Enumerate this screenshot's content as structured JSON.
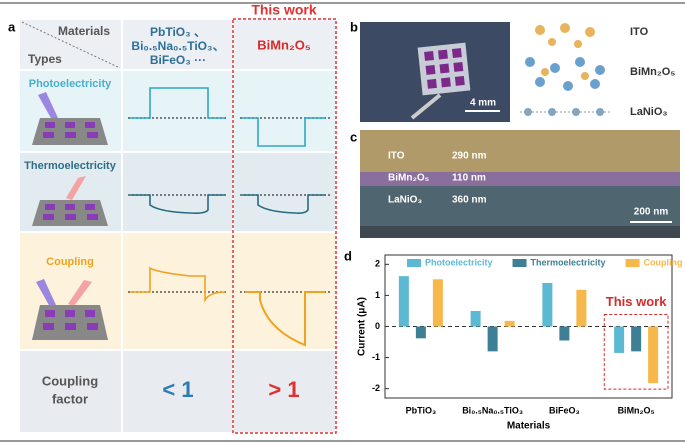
{
  "panel_labels": [
    "a",
    "b",
    "c",
    "d"
  ],
  "panel_a": {
    "header_materials": "Materials",
    "header_types": "Types",
    "this_work": "This work",
    "col1_lines": [
      "PbTiO₃ 、",
      "Bi₀.₅Na₀.₅TiO₃、",
      "BiFeO₃ ···"
    ],
    "col2": "BiMn₂O₅",
    "rows": [
      "Photoelectricity",
      "Thermoelectricity",
      "Coupling"
    ],
    "factor_label": [
      "Coupling",
      "factor"
    ],
    "factor_values": [
      "< 1",
      "> 1"
    ]
  },
  "panel_b": {
    "scale": "4 mm",
    "layers": [
      "ITO",
      "BiMn₂O₅",
      "LaNiO₃"
    ]
  },
  "panel_c": {
    "layers": [
      [
        "ITO",
        "290 nm"
      ],
      [
        "BiMn₂O₅",
        "110 nm"
      ],
      [
        "LaNiO₃",
        "360 nm"
      ]
    ],
    "scale": "200 nm"
  },
  "chart_data": {
    "type": "bar",
    "categories": [
      "PbTiO₃",
      "Bi₀.₅Na₀.₅TiO₃",
      "BiFeO₃",
      "BiMn₂O₅"
    ],
    "series": [
      {
        "name": "Photoelectricity",
        "color": "#5cb9d3",
        "values": [
          1.62,
          0.5,
          1.4,
          -0.85
        ]
      },
      {
        "name": "Thermoelectricity",
        "color": "#3f7f95",
        "values": [
          -0.38,
          -0.8,
          -0.45,
          -0.8
        ]
      },
      {
        "name": "Coupling",
        "color": "#f7b84b",
        "values": [
          1.52,
          0.18,
          1.18,
          -1.82
        ]
      }
    ],
    "ylim": [
      -2.3,
      2.3
    ],
    "yticks": [
      -2,
      -1,
      0,
      1,
      2
    ],
    "y_label": "Current (μA)",
    "x_label": "Materials",
    "legend": "top",
    "annotation": "This work"
  }
}
